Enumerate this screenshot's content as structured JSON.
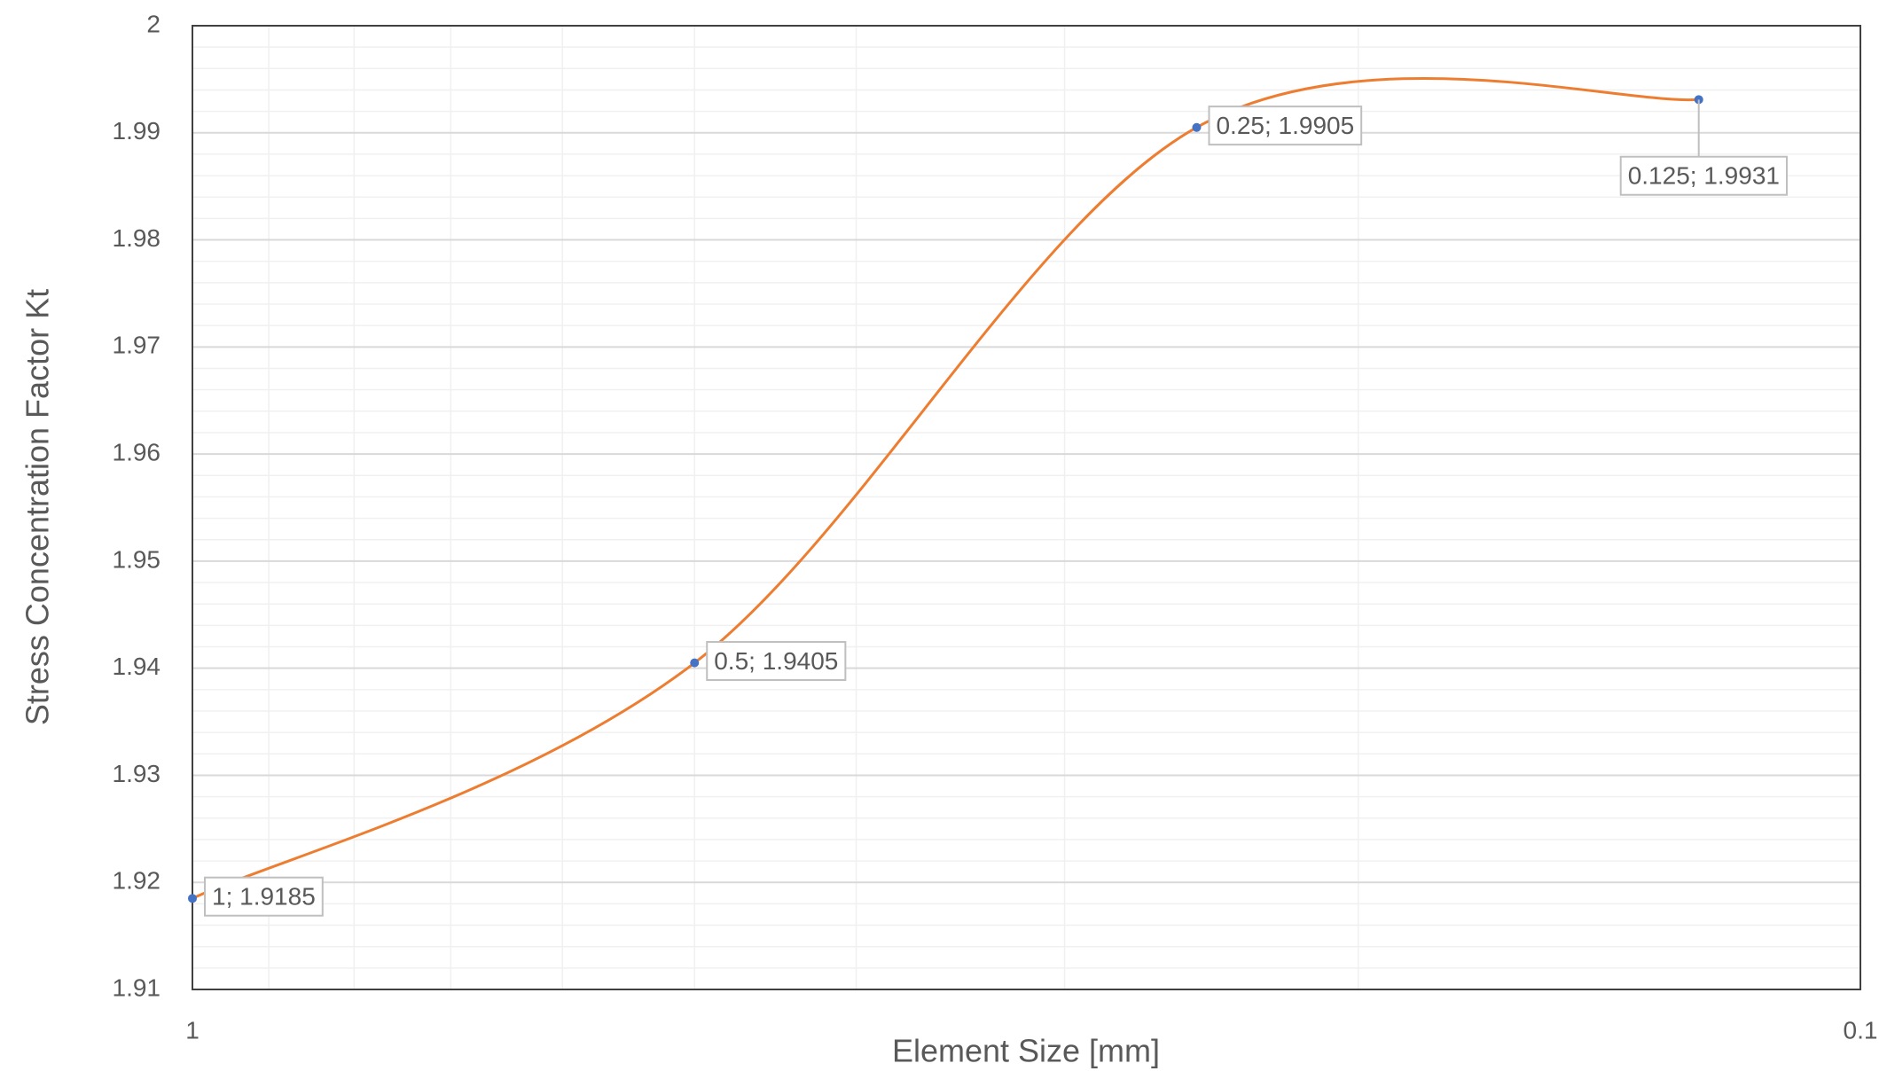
{
  "chart_data": {
    "type": "line",
    "x_label": "Element Size [mm]",
    "y_label": "Stress Concentration Factor Kt",
    "x": [
      1,
      0.5,
      0.25,
      0.125
    ],
    "series": [
      {
        "color": "#ed7d31",
        "marker_color": "#4472c4",
        "values": [
          1.9185,
          1.9405,
          1.9905,
          1.9931
        ],
        "value_labels": [
          "1; 1.9185",
          "0.5; 1.9405",
          "0.25; 1.9905",
          "0.125; 1.9931"
        ]
      }
    ],
    "xscale": "log",
    "xlim": [
      1,
      0.1
    ],
    "xticks": [
      1,
      0.1
    ],
    "ylim": [
      1.91,
      2
    ],
    "yticks": [
      1.91,
      1.92,
      1.93,
      1.94,
      1.95,
      1.96,
      1.97,
      1.98,
      1.99,
      2
    ],
    "grid": true,
    "smooth": true
  }
}
